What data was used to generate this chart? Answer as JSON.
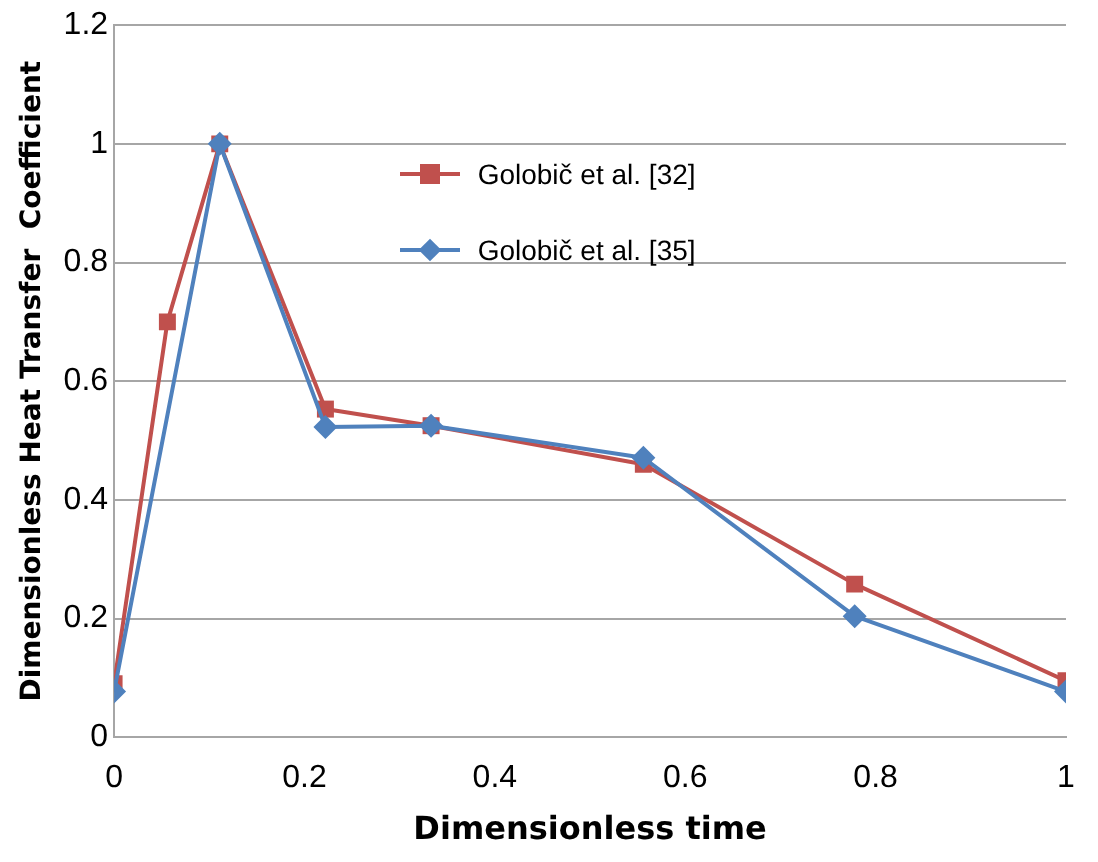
{
  "chart_data": {
    "type": "line",
    "xlabel": "Dimensionless time",
    "ylabel": "Dimensionless Heat Transfer  Coefficient",
    "xlim": [
      0,
      1
    ],
    "xticks": [
      0,
      0.2,
      0.4,
      0.6,
      0.8,
      1
    ],
    "ylim": [
      0,
      1.2
    ],
    "yticks": [
      0,
      0.2,
      0.4,
      0.6,
      0.8,
      1,
      1.2
    ],
    "grid": "y",
    "legend": "top",
    "series": [
      {
        "name": "Golobič et al. [32]",
        "color": "#c0504d",
        "marker": "square",
        "x": [
          0,
          0.056,
          0.111,
          0.222,
          0.333,
          0.556,
          0.778,
          1
        ],
        "values": [
          0.09,
          0.7,
          1.0,
          0.553,
          0.525,
          0.46,
          0.258,
          0.095
        ]
      },
      {
        "name": "Golobič et al. [35]",
        "color": "#4f81bd",
        "marker": "diamond",
        "x": [
          0,
          0.111,
          0.222,
          0.333,
          0.556,
          0.778,
          1
        ],
        "values": [
          0.077,
          1.0,
          0.523,
          0.525,
          0.471,
          0.204,
          0.077
        ]
      }
    ]
  }
}
